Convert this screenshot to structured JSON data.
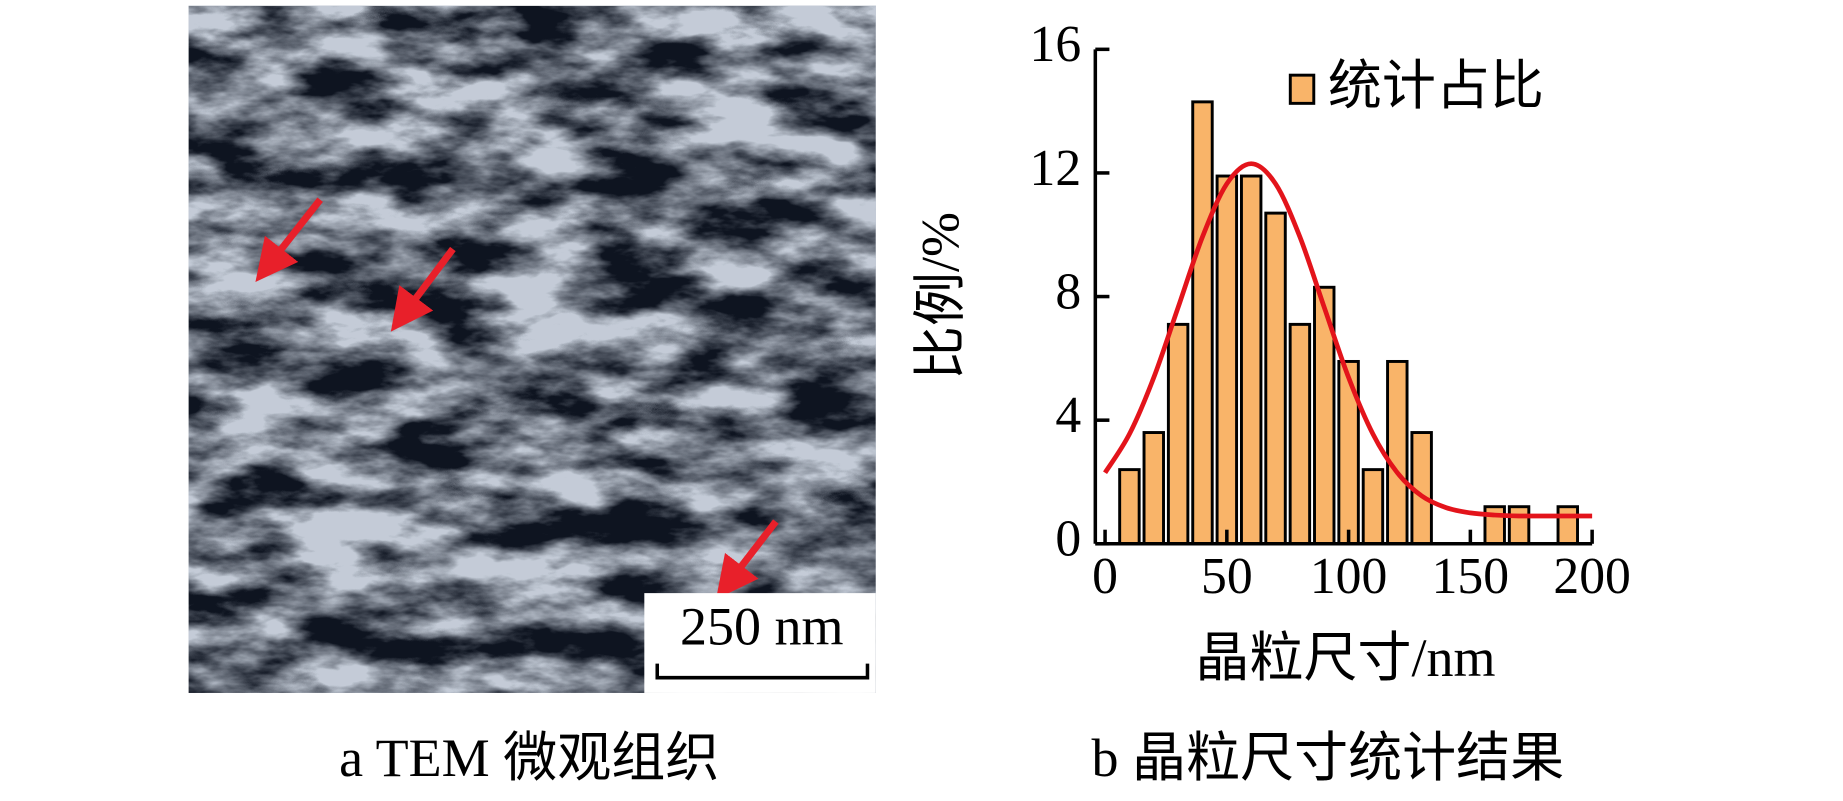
{
  "panel_a": {
    "scale_bar": "250 nm",
    "caption": "a TEM 微观组织"
  },
  "chart_data": {
    "type": "bar",
    "caption": "b 晶粒尺寸统计结果",
    "xlabel": "晶粒尺寸/nm",
    "ylabel": "比例/%",
    "x": [
      10,
      20,
      30,
      40,
      50,
      60,
      70,
      80,
      90,
      100,
      110,
      120,
      130,
      160,
      170,
      190
    ],
    "series": [
      {
        "name": "统计占比",
        "color": "#f9b469",
        "values": [
          2.4,
          3.6,
          7.1,
          14.3,
          11.9,
          11.9,
          10.7,
          7.1,
          8.3,
          5.9,
          2.4,
          5.9,
          3.6,
          1.2,
          1.2,
          1.2
        ]
      }
    ],
    "fit": {
      "color": "#e3141b",
      "x": [
        0,
        10,
        20,
        30,
        40,
        50,
        60,
        70,
        80,
        90,
        100,
        110,
        120,
        130,
        140,
        150,
        160,
        170,
        180,
        190,
        200
      ],
      "values": [
        2.3,
        3.55,
        5.38,
        7.65,
        9.93,
        11.65,
        12.3,
        11.65,
        9.93,
        7.65,
        5.38,
        3.55,
        2.3,
        1.55,
        1.17,
        1.0,
        0.93,
        0.9,
        0.9,
        0.9,
        0.9
      ]
    },
    "bar_width": 8,
    "xlim": [
      -4,
      200
    ],
    "xticks": [
      0,
      50,
      100,
      150,
      200
    ],
    "ylim": [
      0,
      16
    ],
    "yticks": [
      0,
      4,
      8,
      12,
      16
    ],
    "legend": "upper right"
  }
}
